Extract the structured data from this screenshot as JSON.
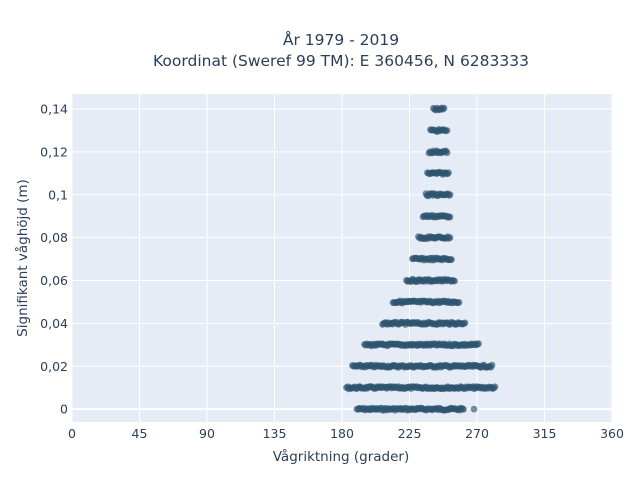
{
  "chart_data": {
    "type": "scatter",
    "title": [
      "År 1979 - 2019",
      "Koordinat (Sweref 99 TM): E 360456, N 6283333"
    ],
    "xlabel": "Vågriktning (grader)",
    "ylabel": "Signifikant våghöjd (m)",
    "xlim": [
      0,
      360
    ],
    "ylim": [
      -0.006,
      0.147
    ],
    "x_ticks": [
      0,
      45,
      90,
      135,
      180,
      225,
      270,
      315,
      360
    ],
    "x_tick_labels": [
      "0",
      "45",
      "90",
      "135",
      "180",
      "225",
      "270",
      "315",
      "360"
    ],
    "y_ticks": [
      0,
      0.02,
      0.04,
      0.06,
      0.08,
      0.1,
      0.12,
      0.14
    ],
    "y_tick_labels": [
      "0",
      "0,02",
      "0,04",
      "0,06",
      "0,08",
      "0,1",
      "0,12",
      "0,14"
    ],
    "grid": true,
    "background": "#e5ecf6",
    "marker_color": "#2e5470",
    "series": [
      {
        "points_description": "Dense scatter of observations; wave heights quantized at 0.01 m steps. Ranges of direction per height level given below.",
        "levels": [
          {
            "y": 0.0,
            "x_min": 190,
            "x_max": 261,
            "extra_x": [
              268
            ]
          },
          {
            "y": 0.01,
            "x_min": 183,
            "x_max": 282
          },
          {
            "y": 0.02,
            "x_min": 187,
            "x_max": 280
          },
          {
            "y": 0.03,
            "x_min": 195,
            "x_max": 271
          },
          {
            "y": 0.04,
            "x_min": 207,
            "x_max": 262
          },
          {
            "y": 0.05,
            "x_min": 214,
            "x_max": 258
          },
          {
            "y": 0.06,
            "x_min": 223,
            "x_max": 255
          },
          {
            "y": 0.07,
            "x_min": 227,
            "x_max": 253
          },
          {
            "y": 0.08,
            "x_min": 231,
            "x_max": 252
          },
          {
            "y": 0.09,
            "x_min": 234,
            "x_max": 252
          },
          {
            "y": 0.1,
            "x_min": 236,
            "x_max": 252
          },
          {
            "y": 0.11,
            "x_min": 237,
            "x_max": 251
          },
          {
            "y": 0.12,
            "x_min": 238,
            "x_max": 250
          },
          {
            "y": 0.13,
            "x_min": 239,
            "x_max": 250
          },
          {
            "y": 0.14,
            "x_min": 241,
            "x_max": 248
          }
        ]
      }
    ]
  }
}
